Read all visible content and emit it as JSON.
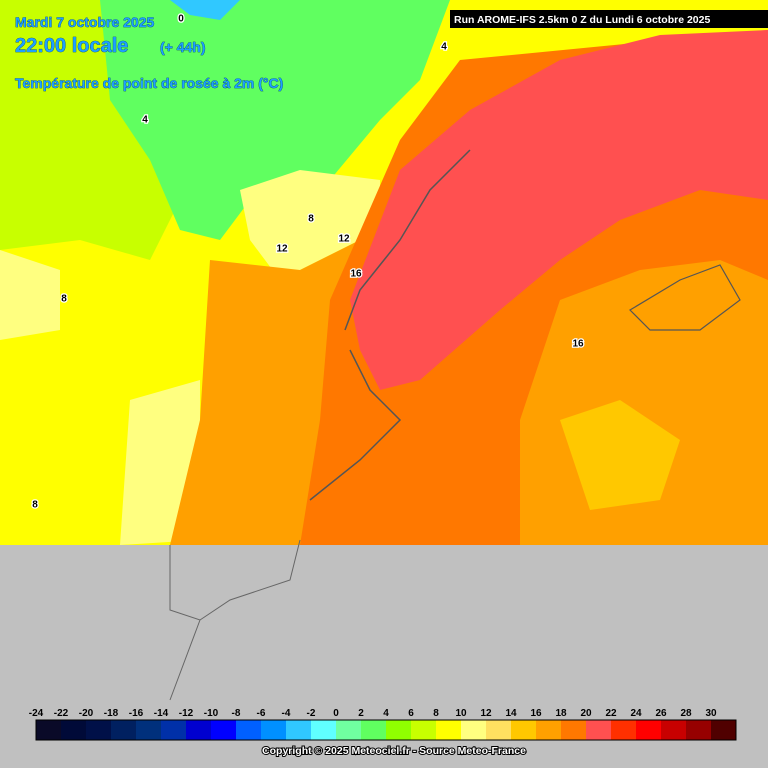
{
  "header": {
    "date": "Mardi 7 octobre 2025",
    "time": "22:00 locale",
    "lead": "(+ 44h)",
    "parameter": "Température de point de rosée à 2m (°C)",
    "run": "Run AROME-IFS 2.5km 0 Z du Lundi 6 octobre 2025"
  },
  "contour_labels": [
    "0",
    "4",
    "4",
    "8",
    "12",
    "12",
    "16",
    "16",
    "8",
    "8"
  ],
  "legend": {
    "labels": [
      "-24",
      "-22",
      "-20",
      "-18",
      "-16",
      "-14",
      "-12",
      "-10",
      "-8",
      "-6",
      "-4",
      "-2",
      "0",
      "2",
      "4",
      "6",
      "8",
      "10",
      "12",
      "14",
      "16",
      "18",
      "20",
      "22",
      "24",
      "26",
      "28",
      "30"
    ],
    "colors": [
      "#0a0a28",
      "#000a38",
      "#001048",
      "#002060",
      "#00307c",
      "#0030a8",
      "#0000d0",
      "#0000ff",
      "#0060ff",
      "#0090ff",
      "#30c8ff",
      "#60ffff",
      "#70ffa0",
      "#60ff60",
      "#90ff00",
      "#c8ff00",
      "#ffff00",
      "#ffff80",
      "#ffe060",
      "#ffc800",
      "#ffa000",
      "#ff7800",
      "#ff5050",
      "#ff3000",
      "#ff0000",
      "#c80000",
      "#960000",
      "#500000"
    ]
  },
  "footer": {
    "copyright": "Copyright © 2025 Meteociel.fr - Source Meteo-France"
  }
}
